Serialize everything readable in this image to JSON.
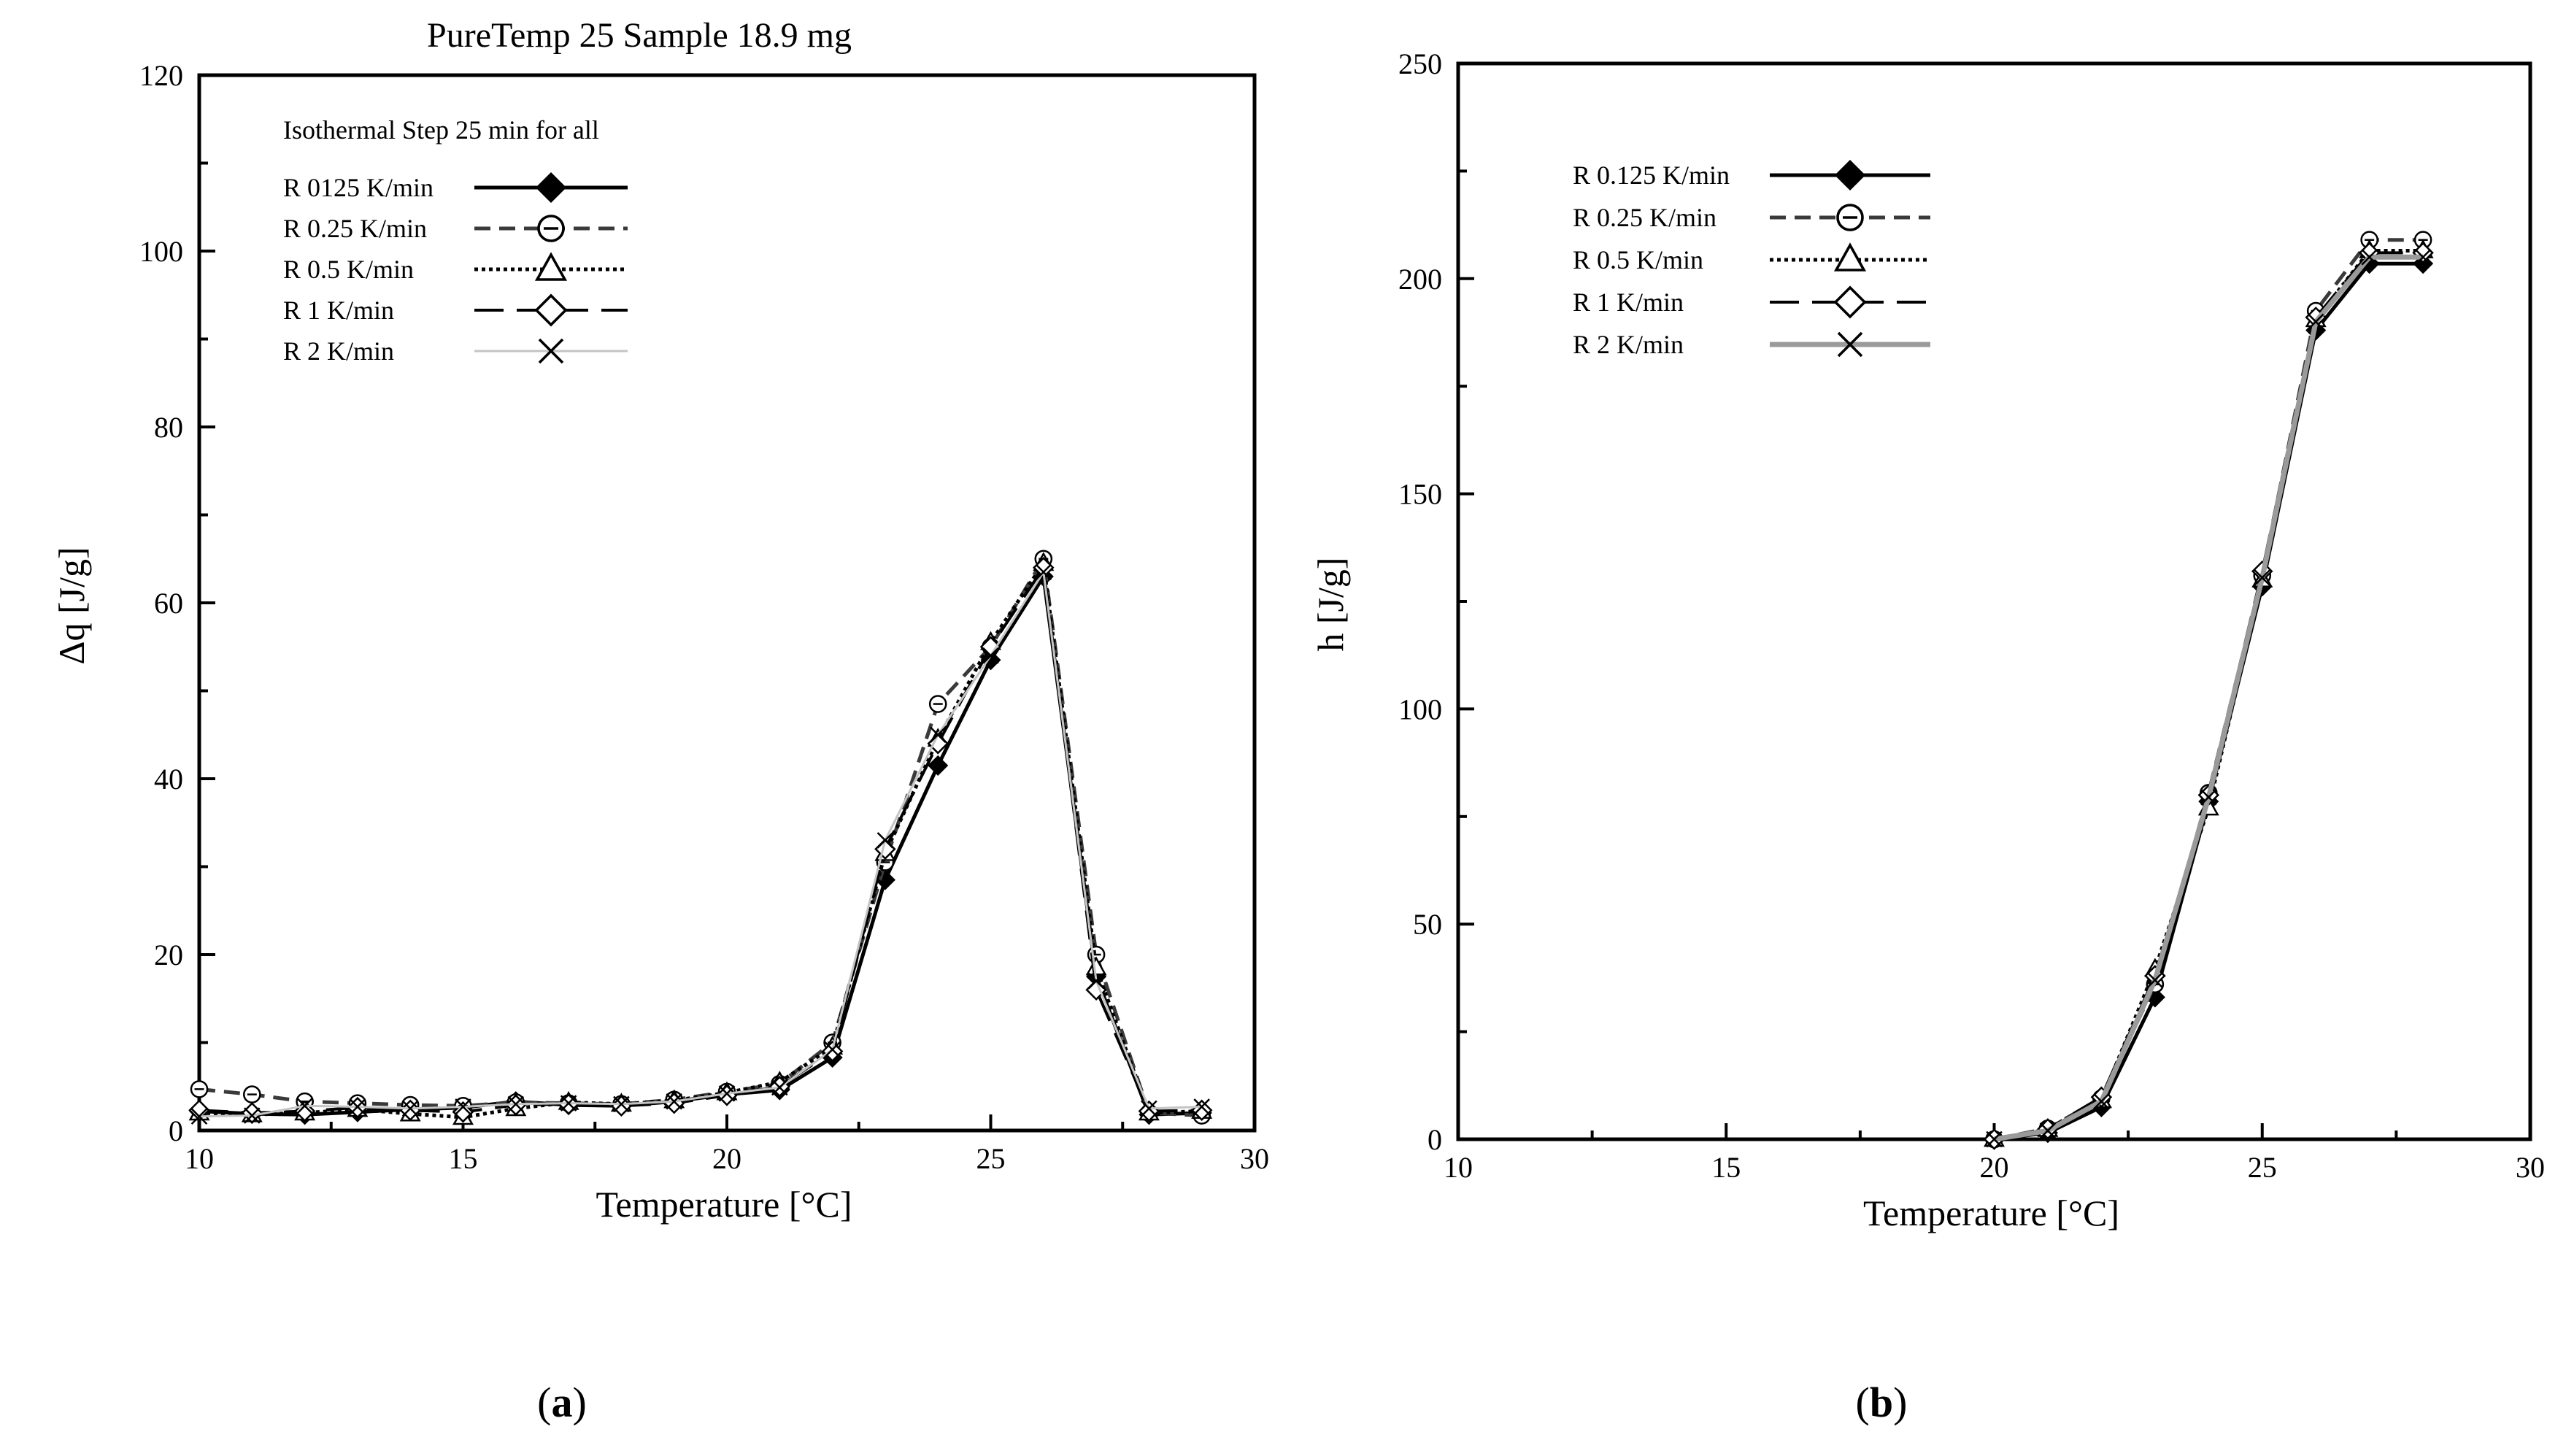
{
  "figure": {
    "caption_a": "a",
    "caption_b": "b"
  },
  "chart_data": [
    {
      "type": "line",
      "title": "PureTemp 25 Sample 18.9 mg",
      "xlabel": "Temperature [°C]",
      "ylabel": "Δq [J/g]",
      "xlim": [
        10,
        30
      ],
      "ylim": [
        0,
        120
      ],
      "xticks": [
        10,
        15,
        20,
        25,
        30
      ],
      "yticks": [
        0,
        20,
        40,
        60,
        80,
        100,
        120
      ],
      "legend_title": "Isothermal Step 25 min for all",
      "legend_position": "top-left",
      "series": [
        {
          "name": "R 0125 K/min",
          "marker": "diamond-filled",
          "line": "solid",
          "color": "#000000",
          "x": [
            10,
            11,
            12,
            13,
            14,
            15,
            16,
            17,
            18,
            19,
            20,
            21,
            22,
            23,
            24,
            25,
            26,
            27,
            28,
            29
          ],
          "y": [
            2.2,
            1.9,
            1.8,
            2.1,
            2.4,
            2.6,
            3.3,
            2.9,
            2.8,
            3.3,
            4.1,
            4.6,
            8.3,
            28.5,
            41.5,
            53.5,
            63.0,
            17.5,
            1.8,
            2.0
          ]
        },
        {
          "name": "R 0.25 K/min",
          "marker": "circle-dash",
          "line": "dashed",
          "color": "#3a3a3a",
          "x": [
            10,
            11,
            12,
            13,
            14,
            15,
            16,
            17,
            18,
            19,
            20,
            21,
            22,
            23,
            24,
            25,
            26,
            27,
            28,
            29
          ],
          "y": [
            4.7,
            4.1,
            3.3,
            3.1,
            2.9,
            2.8,
            3.2,
            3.1,
            3.0,
            3.5,
            4.4,
            5.3,
            10.0,
            30.5,
            48.5,
            55.0,
            65.0,
            20.0,
            2.0,
            1.7
          ]
        },
        {
          "name": "R 0.5 K/min",
          "marker": "triangle-open",
          "line": "dotted",
          "color": "#000000",
          "x": [
            10,
            11,
            12,
            13,
            14,
            15,
            16,
            17,
            18,
            19,
            20,
            21,
            22,
            23,
            24,
            25,
            26,
            27,
            28,
            29
          ],
          "y": [
            2.0,
            1.8,
            2.0,
            2.4,
            1.9,
            1.5,
            2.5,
            3.2,
            3.0,
            3.4,
            4.3,
            5.5,
            9.5,
            31.5,
            44.5,
            55.5,
            64.5,
            18.5,
            2.0,
            2.2
          ]
        },
        {
          "name": "R 1 K/min",
          "marker": "diamond-open",
          "line": "long-dash",
          "color": "#000000",
          "x": [
            10,
            11,
            12,
            13,
            14,
            15,
            16,
            17,
            18,
            19,
            20,
            21,
            22,
            23,
            24,
            25,
            26,
            27,
            28,
            29
          ],
          "y": [
            2.3,
            2.0,
            2.2,
            2.6,
            2.3,
            2.1,
            2.9,
            3.0,
            2.8,
            3.1,
            4.0,
            5.0,
            9.0,
            32.0,
            44.0,
            55.0,
            64.0,
            16.0,
            2.2,
            2.3
          ]
        },
        {
          "name": "R 2 K/min",
          "marker": "x",
          "line": "solid-light",
          "color": "#bdbdbd",
          "x": [
            10,
            11,
            12,
            13,
            14,
            15,
            16,
            17,
            18,
            19,
            20,
            21,
            22,
            23,
            24,
            25,
            26,
            27,
            28,
            29
          ],
          "y": [
            1.6,
            1.7,
            2.8,
            2.7,
            2.5,
            2.7,
            3.0,
            3.1,
            3.0,
            3.3,
            4.2,
            4.9,
            9.2,
            33.0,
            45.0,
            54.0,
            63.5,
            17.0,
            2.5,
            2.7
          ]
        }
      ]
    },
    {
      "type": "line",
      "title": "",
      "xlabel": "Temperature [°C]",
      "ylabel": "h [J/g]",
      "xlim": [
        10,
        30
      ],
      "ylim": [
        0,
        250
      ],
      "xticks": [
        10,
        15,
        20,
        25,
        30
      ],
      "yticks": [
        0,
        50,
        100,
        150,
        200,
        250
      ],
      "legend_position": "top-left",
      "series": [
        {
          "name": "R 0.125 K/min",
          "marker": "diamond-filled",
          "line": "solid",
          "color": "#000000",
          "x": [
            20,
            21,
            22,
            23,
            24,
            25,
            26,
            27,
            28
          ],
          "y": [
            0,
            1.5,
            7.5,
            33.0,
            78.5,
            128.5,
            188.0,
            203.5,
            203.5
          ]
        },
        {
          "name": "R 0.25 K/min",
          "marker": "circle-dash",
          "line": "dashed",
          "color": "#3a3a3a",
          "x": [
            20,
            21,
            22,
            23,
            24,
            25,
            26,
            27,
            28
          ],
          "y": [
            0,
            2.5,
            9.5,
            36.0,
            80.5,
            131.0,
            192.5,
            209.0,
            209.0
          ]
        },
        {
          "name": "R 0.5 K/min",
          "marker": "triangle-open",
          "line": "dotted",
          "color": "#000000",
          "x": [
            20,
            21,
            22,
            23,
            24,
            25,
            26,
            27,
            28
          ],
          "y": [
            0,
            2.3,
            9.0,
            39.5,
            77.0,
            130.0,
            190.5,
            206.5,
            206.5
          ]
        },
        {
          "name": "R 1 K/min",
          "marker": "diamond-open",
          "line": "long-dash",
          "color": "#000000",
          "x": [
            20,
            21,
            22,
            23,
            24,
            25,
            26,
            27,
            28
          ],
          "y": [
            0,
            2.4,
            9.8,
            38.0,
            80.0,
            132.0,
            191.0,
            206.0,
            206.0
          ]
        },
        {
          "name": "R 2 K/min",
          "marker": "x",
          "line": "solid-gray",
          "color": "#9a9a9a",
          "x": [
            20,
            21,
            22,
            23,
            24,
            25,
            26,
            27,
            28
          ],
          "y": [
            0,
            2.0,
            8.8,
            37.0,
            79.5,
            130.5,
            190.0,
            205.0,
            205.0
          ]
        }
      ]
    }
  ]
}
